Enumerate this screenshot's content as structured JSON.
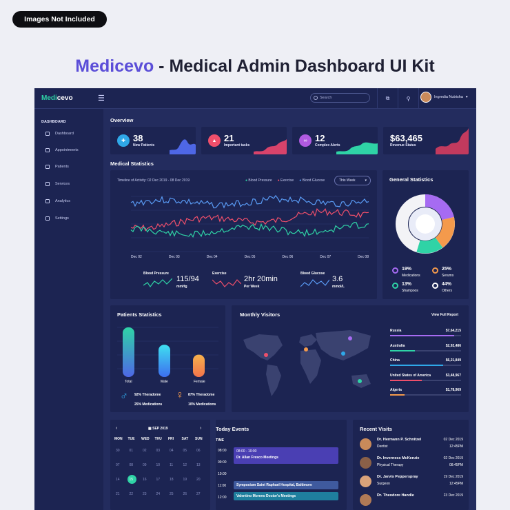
{
  "badge": "Images Not Included",
  "headline": {
    "brand": "Medicevo",
    "rest": " - Medical Admin Dashboard UI Kit"
  },
  "topbar": {
    "logo_a": "Medi",
    "logo_b": "cevo",
    "search_placeholder": "Search",
    "user_name": "Ingredia Nutrisha"
  },
  "sidebar": {
    "title": "DASHBOARD",
    "items": [
      "Dashboard",
      "Appointments",
      "Patients",
      "Services",
      "Analytics",
      "Settings"
    ]
  },
  "overview": {
    "title": "Overview",
    "cards": [
      {
        "value": "38",
        "label": "New Patients",
        "color": "#2fa8e8"
      },
      {
        "value": "21",
        "label": "Important tasks",
        "color": "#ef4f6b"
      },
      {
        "value": "12",
        "label": "Complex Alerts",
        "color": "#b05ae0"
      },
      {
        "value": "$63,465",
        "label": "Revenue Status",
        "color": "#e0455c"
      }
    ]
  },
  "medical": {
    "title": "Medical Statistics",
    "timeline": "Timeline of Activity: 02 Dec 2019 - 08 Dec 2019",
    "legend": [
      "Blood Pressure",
      "Exercise",
      "Blood Glucose"
    ],
    "range_select": "This Week",
    "x_labels": [
      "Dec 02",
      "Dec 03",
      "Dec 04",
      "Dec 05",
      "Dec 06",
      "Dec 07",
      "Dec 08"
    ],
    "stats": [
      {
        "name": "Blood Pressure",
        "value": "115/94",
        "unit": "mmHg"
      },
      {
        "name": "Exercise",
        "value": "2hr 20min",
        "unit": "Per Week"
      },
      {
        "name": "Blood Glucose",
        "value": "3.6",
        "unit": "mmol/L"
      }
    ]
  },
  "general": {
    "title": "General Statistics",
    "items": [
      {
        "pct": "19%",
        "label": "Medications",
        "color": "#a66bf2"
      },
      {
        "pct": "25%",
        "label": "Serums",
        "color": "#f49a4c"
      },
      {
        "pct": "13%",
        "label": "Shampoos",
        "color": "#2fd3a6"
      },
      {
        "pct": "44%",
        "label": "Others",
        "color": "#ffffff"
      }
    ]
  },
  "patients": {
    "title": "Patients Statistics",
    "bars": [
      {
        "label": "Total",
        "value": 1.0
      },
      {
        "label": "Male",
        "value": 0.65
      },
      {
        "label": "Female",
        "value": 0.45
      }
    ],
    "male": [
      "92% Theradome",
      "25% Medications"
    ],
    "female": [
      "87% Theradome",
      "10% Medications"
    ]
  },
  "visitors": {
    "title": "Monthly Visitors",
    "link": "View Full Report",
    "rows": [
      {
        "country": "Russia",
        "amount": "$7,64,215",
        "fill": 0.9,
        "color": "#a66bf2"
      },
      {
        "country": "Australia",
        "amount": "$2,92,486",
        "fill": 0.35,
        "color": "#2fd3a6"
      },
      {
        "country": "China",
        "amount": "$6,21,849",
        "fill": 0.75,
        "color": "#2fa8e8"
      },
      {
        "country": "United States of America",
        "amount": "$3,48,967",
        "fill": 0.45,
        "color": "#ef4f6b"
      },
      {
        "country": "Algeria",
        "amount": "$1,78,969",
        "fill": 0.2,
        "color": "#f49a4c"
      }
    ]
  },
  "calendar": {
    "month": "SEP 2019",
    "days": [
      "MON",
      "TUE",
      "WED",
      "THU",
      "FRI",
      "SAT",
      "SUN"
    ],
    "rows": [
      [
        "30",
        "01",
        "02",
        "03",
        "04",
        "05",
        "06"
      ],
      [
        "07",
        "08",
        "09",
        "10",
        "11",
        "12",
        "13"
      ],
      [
        "14",
        "15",
        "16",
        "17",
        "18",
        "19",
        "20"
      ],
      [
        "21",
        "22",
        "23",
        "24",
        "25",
        "26",
        "27"
      ]
    ],
    "selected": "15"
  },
  "events": {
    "title": "Today Events",
    "time_header": "TIME",
    "times": [
      "08:00",
      "09:00",
      "10:00",
      "11:00",
      "12:00"
    ],
    "items": [
      {
        "line1": "08:00 - 10:00",
        "line2": "Dr. Allan Fresco Meetings"
      },
      {
        "line1": "Symposium Saint Raphael Hospital, Baltimore",
        "line2": ""
      },
      {
        "line1": "Valentino Moreno Doctor's Meetings",
        "line2": ""
      }
    ]
  },
  "recent": {
    "title": "Recent Visits",
    "items": [
      {
        "name": "Dr. Hermann P. Schnitzel",
        "role": "Dentist",
        "date": "02 Dec 2019",
        "time": "12:45PM"
      },
      {
        "name": "Dr. Inverness McKenzie",
        "role": "Physical Therapy",
        "date": "02 Dec 2019",
        "time": "08:45PM"
      },
      {
        "name": "Dr. Jarvis Pepperspray",
        "role": "Surgeon",
        "date": "19 Dec 2019",
        "time": "12:45PM"
      },
      {
        "name": "Dr. Theodore Handle",
        "role": "",
        "date": "23 Dec 2019",
        "time": ""
      }
    ]
  }
}
